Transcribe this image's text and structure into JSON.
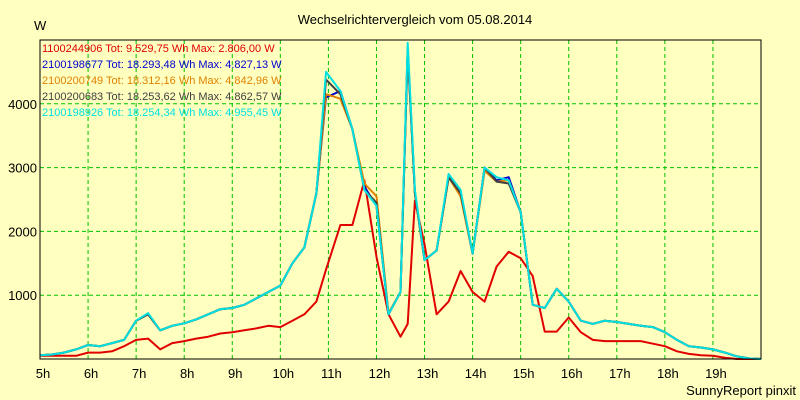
{
  "chart_data": {
    "type": "line",
    "title": "Wechselrichtervergleich vom 05.08.2014",
    "ylabel": "W",
    "xlabel": "",
    "footer": "SunnyReport pinxit",
    "grid": true,
    "legend_position": "top-left",
    "xlim": [
      5,
      20
    ],
    "ylim": [
      0,
      5000
    ],
    "x_ticks": [
      "5h",
      "6h",
      "7h",
      "8h",
      "9h",
      "10h",
      "11h",
      "12h",
      "13h",
      "14h",
      "15h",
      "16h",
      "17h",
      "18h",
      "19h"
    ],
    "y_ticks": [
      1000,
      2000,
      3000,
      4000
    ],
    "x": [
      5.0,
      5.25,
      5.5,
      5.75,
      6.0,
      6.25,
      6.5,
      6.75,
      7.0,
      7.25,
      7.5,
      7.75,
      8.0,
      8.25,
      8.5,
      8.75,
      9.0,
      9.25,
      9.5,
      9.75,
      10.0,
      10.25,
      10.5,
      10.75,
      10.95,
      11.25,
      11.5,
      11.75,
      12.0,
      12.25,
      12.5,
      12.65,
      12.8,
      13.0,
      13.25,
      13.5,
      13.75,
      14.0,
      14.25,
      14.5,
      14.75,
      15.0,
      15.25,
      15.5,
      15.75,
      16.0,
      16.25,
      16.5,
      16.75,
      17.0,
      17.25,
      17.5,
      17.75,
      18.0,
      18.25,
      18.5,
      18.75,
      19.0,
      19.25,
      19.5,
      19.75,
      20.0
    ],
    "series": [
      {
        "name": "1100244906",
        "legend": "1100244906 Tot: 9.529,75 Wh Max: 2.806,00 W",
        "color": "#e00000",
        "values": [
          50,
          50,
          50,
          50,
          100,
          100,
          120,
          200,
          300,
          320,
          150,
          250,
          280,
          320,
          350,
          400,
          420,
          450,
          480,
          520,
          500,
          600,
          700,
          900,
          1400,
          2100,
          2100,
          2800,
          1600,
          700,
          350,
          550,
          2480,
          1800,
          700,
          900,
          1380,
          1050,
          900,
          1450,
          1680,
          1580,
          1300,
          430,
          430,
          650,
          420,
          300,
          280,
          280,
          280,
          280,
          240,
          200,
          120,
          80,
          60,
          50,
          20,
          0,
          0,
          0
        ]
      },
      {
        "name": "2100198677",
        "legend": "2100198677 Tot: 18.293,48 Wh Max: 4.827,13 W",
        "color": "#0000d0",
        "values": [
          60,
          70,
          100,
          150,
          220,
          200,
          250,
          300,
          600,
          700,
          450,
          520,
          560,
          620,
          700,
          780,
          800,
          850,
          950,
          1050,
          1150,
          1500,
          1750,
          2600,
          4100,
          4200,
          3600,
          2700,
          2400,
          700,
          1050,
          4827,
          2600,
          1550,
          1700,
          2850,
          2600,
          1650,
          3000,
          2800,
          2850,
          2300,
          850,
          800,
          1100,
          900,
          600,
          550,
          600,
          580,
          550,
          520,
          500,
          420,
          300,
          200,
          180,
          150,
          100,
          40,
          10,
          0
        ]
      },
      {
        "name": "2100200749",
        "legend": "2100200749 Tot: 18.312,16 Wh Max: 4.842,96 W",
        "color": "#e08000",
        "values": [
          60,
          70,
          100,
          150,
          220,
          200,
          250,
          300,
          600,
          700,
          450,
          520,
          560,
          620,
          700,
          780,
          800,
          850,
          950,
          1050,
          1150,
          1500,
          1750,
          2600,
          4150,
          4080,
          3600,
          2750,
          2550,
          720,
          1050,
          4843,
          2600,
          1550,
          1700,
          2850,
          2550,
          1650,
          2950,
          2780,
          2800,
          2300,
          850,
          800,
          1100,
          900,
          600,
          550,
          600,
          580,
          550,
          520,
          500,
          420,
          300,
          200,
          180,
          150,
          100,
          40,
          10,
          0
        ]
      },
      {
        "name": "2100200683",
        "legend": "2100200683 Tot: 18.253,62 Wh Max: 4.862,57 W",
        "color": "#404040",
        "values": [
          60,
          70,
          100,
          150,
          220,
          200,
          250,
          300,
          600,
          700,
          450,
          520,
          560,
          620,
          700,
          780,
          800,
          850,
          950,
          1050,
          1150,
          1500,
          1750,
          2600,
          4380,
          4150,
          3600,
          2650,
          2450,
          700,
          1050,
          4863,
          2600,
          1550,
          1700,
          2850,
          2600,
          1650,
          3000,
          2780,
          2750,
          2300,
          850,
          800,
          1100,
          900,
          600,
          550,
          600,
          580,
          550,
          520,
          500,
          420,
          300,
          200,
          180,
          150,
          100,
          40,
          10,
          0
        ]
      },
      {
        "name": "2100198926",
        "legend": "2100198926 Tot: 18.254,34 Wh Max: 4.955,45 W",
        "color": "#00e0e0",
        "values": [
          60,
          70,
          100,
          150,
          220,
          200,
          250,
          300,
          600,
          720,
          450,
          520,
          560,
          620,
          700,
          780,
          800,
          850,
          950,
          1050,
          1150,
          1500,
          1750,
          2600,
          4500,
          4200,
          3600,
          2650,
          2400,
          700,
          1050,
          4955,
          2650,
          1550,
          1700,
          2900,
          2650,
          1650,
          3000,
          2850,
          2800,
          2300,
          850,
          800,
          1100,
          900,
          600,
          550,
          600,
          580,
          550,
          520,
          500,
          420,
          300,
          200,
          180,
          150,
          100,
          40,
          10,
          0
        ]
      }
    ]
  }
}
